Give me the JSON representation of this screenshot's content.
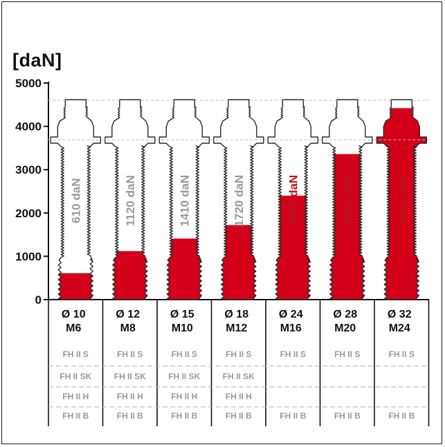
{
  "chart_data": {
    "type": "bar",
    "unit_label": "[daN]",
    "ylim": [
      0,
      5000
    ],
    "yticks": [
      0,
      1000,
      2000,
      3000,
      4000,
      5000
    ],
    "categories": [
      {
        "diameter": "Ø 10",
        "thread": "M6"
      },
      {
        "diameter": "Ø 12",
        "thread": "M8"
      },
      {
        "diameter": "Ø 15",
        "thread": "M10"
      },
      {
        "diameter": "Ø 18",
        "thread": "M12"
      },
      {
        "diameter": "Ø 24",
        "thread": "M16"
      },
      {
        "diameter": "Ø 28",
        "thread": "M20"
      },
      {
        "diameter": "Ø 32",
        "thread": "M24"
      }
    ],
    "values": [
      610,
      1120,
      1410,
      1720,
      2400,
      3360,
      4420
    ],
    "value_labels": [
      "610 daN",
      "1120 daN",
      "1410 daN",
      "1720 daN",
      "2400 daN",
      "3360 daN",
      "4420 daN"
    ],
    "variant_rows": [
      [
        "FH II S",
        "FH II S",
        "FH II S",
        "FH II S",
        "FH II S",
        "FH II S",
        "FH II S"
      ],
      [
        "FH II SK",
        "FH II SK",
        "FH II SK",
        "FH II SK",
        "",
        "",
        ""
      ],
      [
        "FH II H",
        "FH II H",
        "FH II H",
        "FH II H",
        "",
        "",
        ""
      ],
      [
        "FH II B",
        "FH II B",
        "FH II B",
        "FH II B",
        "FH II B",
        "FH II B",
        "FH II B"
      ]
    ],
    "colors": {
      "fill": "#d4001a",
      "outline": "#2a2a2a",
      "variant_text": "#9a9a9a"
    }
  }
}
